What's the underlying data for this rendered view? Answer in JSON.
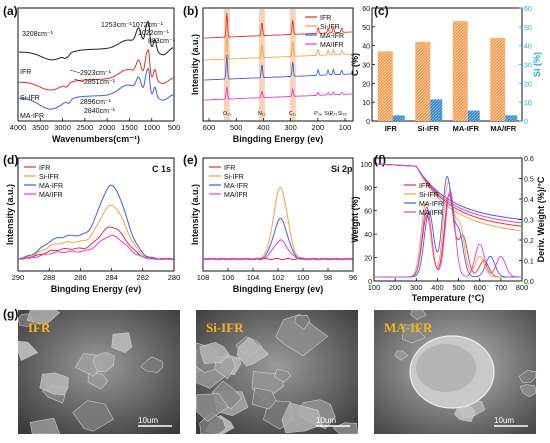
{
  "colors": {
    "IFR": "#e7302a",
    "Si-IFR": "#f5a04a",
    "MA-IFR": "#3f5fe0",
    "MA/IFR": "#e83ad6",
    "black": "#1a1a1a",
    "cyan": "#2aa7d8",
    "orange": "#f39a4d",
    "bar_blue": "#2f86c9"
  },
  "chart_data": [
    {
      "panel": "a",
      "type": "line",
      "xlabel": "Wavenumbers(cm⁻¹)",
      "xticks": [
        "4000",
        "3500",
        "3000",
        "2500",
        "2000",
        "1500",
        "1000",
        "500"
      ],
      "xlim": [
        4000,
        450
      ],
      "series_labels": [
        "IFR",
        "Si-IFR",
        "MA-IFR"
      ],
      "annotations": [
        "3208cm⁻¹",
        "1253cm⁻¹",
        "1072cm⁻¹",
        "1022cm⁻¹",
        "883cm⁻¹",
        "2923cm⁻¹",
        "2851cm⁻¹",
        "2896cm⁻¹",
        "2840cm⁻¹"
      ]
    },
    {
      "panel": "b",
      "type": "line",
      "xlabel": "Bingding Energy (ev)",
      "ylabel": "Intensity (a.u.)",
      "xticks": [
        "600",
        "500",
        "400",
        "300",
        "200",
        "100"
      ],
      "xlim": [
        620,
        60
      ],
      "legend": [
        "IFR",
        "Si-IFR",
        "MA-IFR",
        "MA/IFR"
      ],
      "peak_labels": [
        "O₁ₛ",
        "N₁ₛ",
        "C₁ₛ",
        "P₂ₚ",
        "Si₂ₛ",
        "P₂ₛ",
        "Si₂ₚ"
      ]
    },
    {
      "panel": "c",
      "type": "bar",
      "categories": [
        "IFR",
        "Si-IFR",
        "MA-IFR",
        "MA/IFR"
      ],
      "ylabel": "C (%)",
      "ylabel_right": "Si (%)",
      "ylim": [
        0,
        60
      ],
      "ylim_right": [
        0,
        60
      ],
      "yticks": [
        "0",
        "10",
        "20",
        "30",
        "40",
        "50",
        "60"
      ],
      "series": [
        {
          "name": "C",
          "values": [
            37,
            42,
            53,
            44
          ]
        },
        {
          "name": "Si",
          "values": [
            3,
            11.5,
            5.5,
            3
          ]
        }
      ]
    },
    {
      "panel": "d",
      "type": "line",
      "title": "C 1s",
      "xlabel": "Bingding Energy (ev)",
      "ylabel": "Intensity (a.u.)",
      "xticks": [
        "290",
        "288",
        "286",
        "284",
        "282",
        "280"
      ],
      "xlim": [
        290,
        280
      ],
      "legend": [
        "IFR",
        "Si-IFR",
        "MA-IFR",
        "MA/IFR"
      ],
      "peak_center": 284.0,
      "peak_heights": [
        0.36,
        0.6,
        0.82,
        0.26
      ]
    },
    {
      "panel": "e",
      "type": "line",
      "title": "Si 2p",
      "xlabel": "Bingding Energy (ev)",
      "ylabel": "Intensity (a.u.)",
      "xticks": [
        "108",
        "106",
        "104",
        "102",
        "100",
        "98",
        "96"
      ],
      "xlim": [
        108,
        96
      ],
      "legend": [
        "IFR",
        "Si-IFR",
        "MA-IFR",
        "MA/IFR"
      ],
      "peak_center": 101.8,
      "peak_heights": [
        0.0,
        0.8,
        0.45,
        0.21
      ]
    },
    {
      "panel": "f",
      "type": "line",
      "xlabel": "Temperature (°C)",
      "ylabel": "Weight (%)",
      "ylabel_right": "Deriv. Weight (%)/°C",
      "xticks": [
        "100",
        "200",
        "300",
        "400",
        "500",
        "600",
        "700",
        "800"
      ],
      "yticks": [
        "0",
        "20",
        "40",
        "60",
        "80",
        "100"
      ],
      "yticks_right": [
        "0.0",
        "0.1",
        "0.2",
        "0.3",
        "0.4",
        "0.5",
        "0.6"
      ],
      "xlim": [
        100,
        800
      ],
      "ylim": [
        0,
        105
      ],
      "ylim_right": [
        0,
        0.6
      ],
      "legend": [
        "IFR",
        "Si-IFR",
        "MA-IFR",
        "MA/IFR"
      ]
    }
  ],
  "panel_labels": {
    "a": "(a)",
    "b": "(b)",
    "c": "(c)",
    "d": "(d)",
    "e": "(e)",
    "f": "(f)",
    "g": "(g)"
  },
  "micro": {
    "labels": [
      "IFR",
      "Si-IFR",
      "MA-IFR"
    ],
    "scale": "10um"
  }
}
